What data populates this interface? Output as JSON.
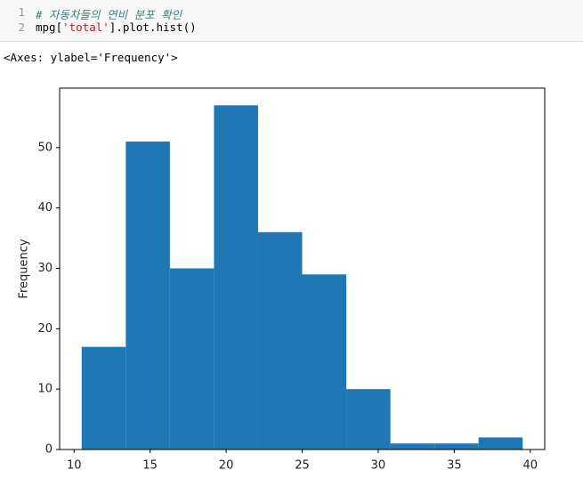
{
  "code": {
    "line_numbers": [
      1,
      2
    ],
    "lines": [
      [
        "# 자동차들의 연비 분포 확인"
      ],
      [
        "mpg[",
        "'total'",
        "].plot.hist()"
      ]
    ]
  },
  "output_text": "<Axes: ylabel='Frequency'>",
  "chart_data": {
    "type": "histogram",
    "y_label": "Frequency",
    "color": "#1f77b4",
    "bins": [
      10.5,
      13.4,
      16.3,
      19.2,
      22.1,
      25.0,
      27.9,
      30.8,
      33.7,
      36.6,
      39.5
    ],
    "values": [
      17,
      51,
      30,
      57,
      36,
      29,
      10,
      1,
      1,
      2
    ],
    "xlim": [
      9.05,
      40.95
    ],
    "ylim": [
      0,
      59.85
    ],
    "xticks": [
      10,
      15,
      20,
      25,
      30,
      35,
      40
    ],
    "yticks": [
      0,
      10,
      20,
      30,
      40,
      50
    ],
    "grid": false
  }
}
